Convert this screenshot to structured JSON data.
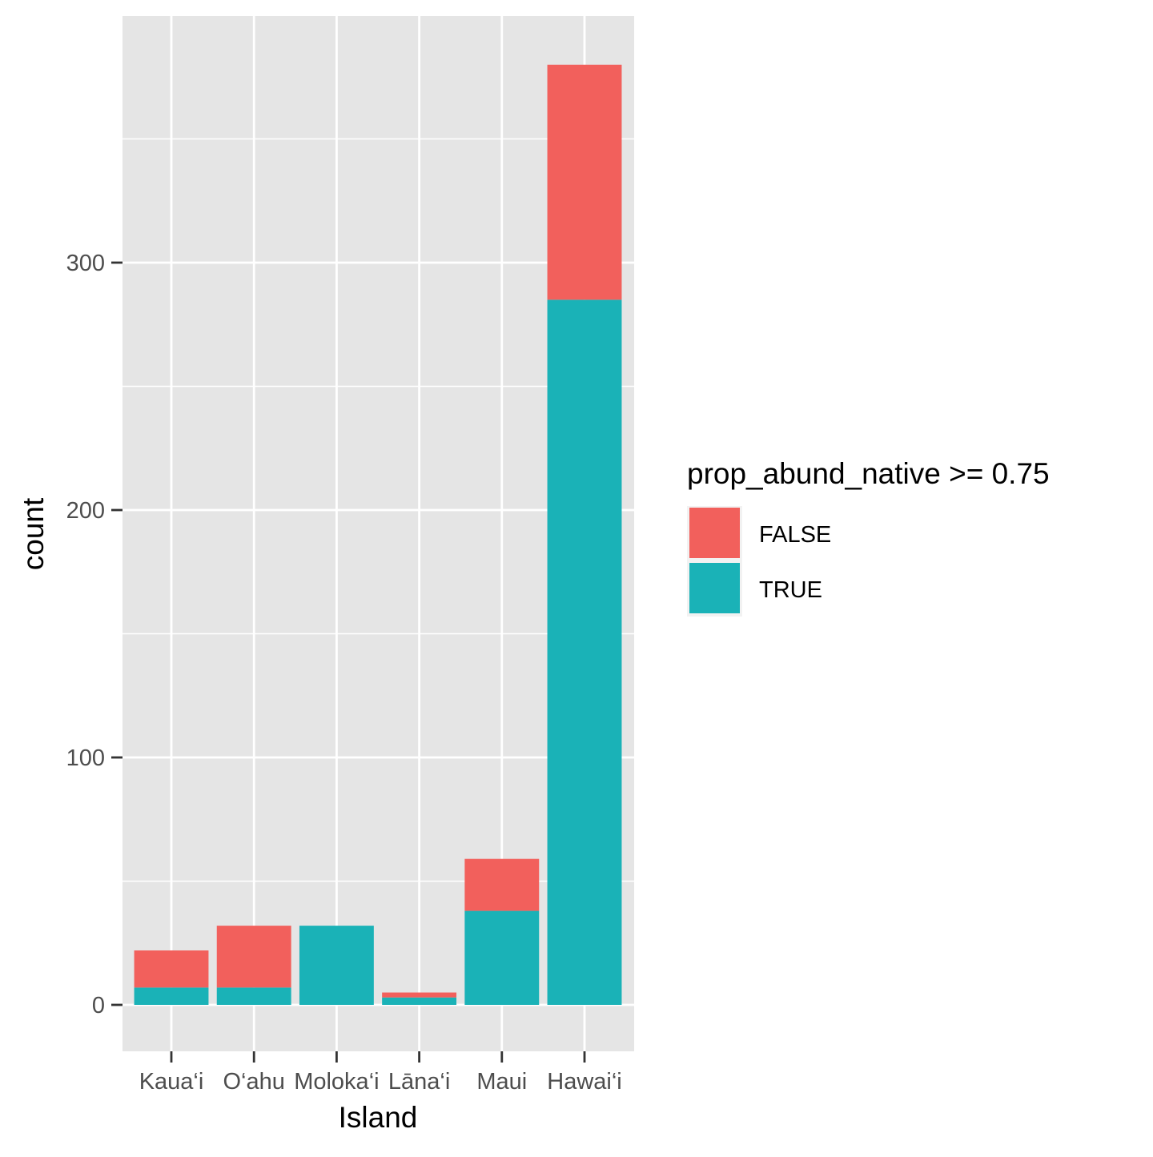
{
  "chart_data": {
    "type": "bar",
    "stacked": true,
    "xlabel": "Island",
    "ylabel": "count",
    "categories": [
      "Kaua‘i",
      "O‘ahu",
      "Moloka‘i",
      "Lāna‘i",
      "Maui",
      "Hawai‘i"
    ],
    "series": [
      {
        "name": "TRUE",
        "color": "#1ab2b7",
        "values": [
          7,
          7,
          32,
          3,
          38,
          285
        ]
      },
      {
        "name": "FALSE",
        "color": "#f2605c",
        "values": [
          15,
          25,
          0,
          2,
          21,
          95
        ]
      }
    ],
    "yticks": [
      0,
      100,
      200,
      300
    ],
    "ylim": [
      -19,
      400
    ],
    "grid": true,
    "panel_background": "#e5e5e5",
    "grid_color": "#ffffff",
    "legend": {
      "title": "prop_abund_native >= 0.75",
      "position": "right",
      "entries": [
        {
          "label": "FALSE",
          "color": "#f2605c"
        },
        {
          "label": "TRUE",
          "color": "#1ab2b7"
        }
      ]
    }
  }
}
